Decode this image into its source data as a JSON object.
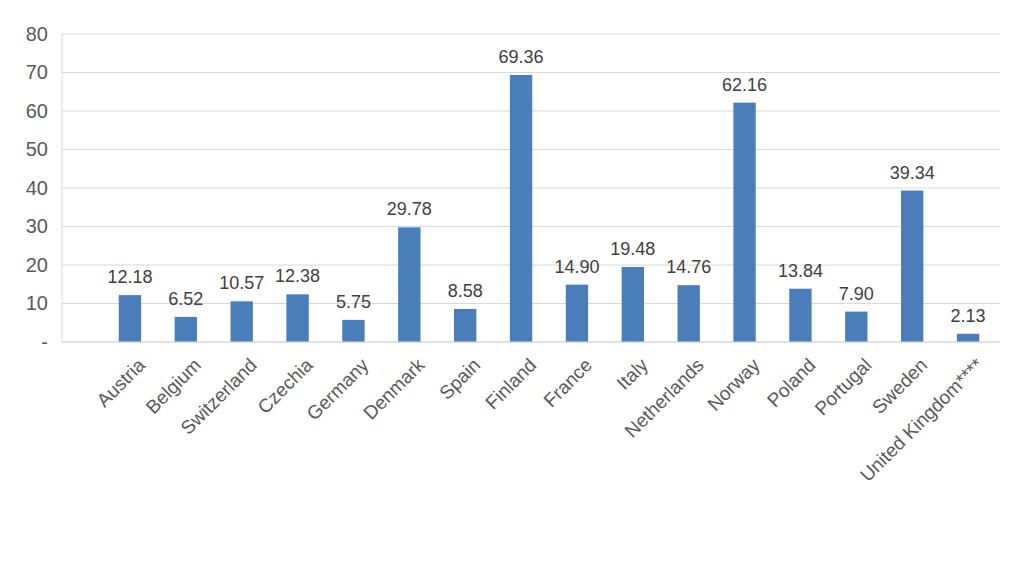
{
  "chart_data": {
    "type": "bar",
    "categories": [
      "Austria",
      "Belgium",
      "Switzerland",
      "Czechia",
      "Germany",
      "Denmark",
      "Spain",
      "Finland",
      "France",
      "Italy",
      "Netherlands",
      "Norway",
      "Poland",
      "Portugal",
      "Sweden",
      "United Kingdom****"
    ],
    "values": [
      12.18,
      6.52,
      10.57,
      12.38,
      5.75,
      29.78,
      8.58,
      69.36,
      14.9,
      19.48,
      14.76,
      62.16,
      13.84,
      7.9,
      39.34,
      2.13
    ],
    "value_labels": [
      "12.18",
      "6.52",
      "10.57",
      "12.38",
      "5.75",
      "29.78",
      "8.58",
      "69.36",
      "14.90",
      "19.48",
      "14.76",
      "62.16",
      "13.84",
      "7.90",
      "39.34",
      "2.13"
    ],
    "color": "#4a7ebb",
    "ylim": [
      0,
      80
    ],
    "yticks": [
      {
        "value": 0,
        "label": "-"
      },
      10,
      20,
      30,
      40,
      50,
      60,
      70,
      80
    ],
    "grid": true,
    "data_labels": true
  }
}
